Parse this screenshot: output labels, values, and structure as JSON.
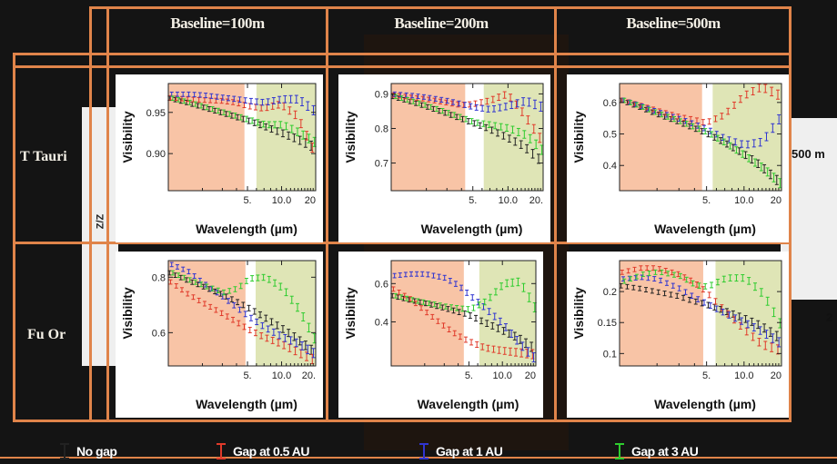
{
  "columns": [
    "Baseline=100m",
    "Baseline=200m",
    "Baseline=500m"
  ],
  "rows": [
    "T Tauri",
    "Fu Or"
  ],
  "axis": {
    "xlabel": "Wavelength (µm)",
    "ylabel": "Visibility"
  },
  "legend": [
    {
      "label": "No gap",
      "color": "#222222"
    },
    {
      "label": "Gap at 0.5 AU",
      "color": "#e03a2a"
    },
    {
      "label": "Gap at 1 AU",
      "color": "#3035d0"
    },
    {
      "label": "Gap at 3 AU",
      "color": "#2ecc2e"
    }
  ],
  "background_fragments": {
    "left_axis": "Z/Z",
    "right_label": "500 m",
    "right_tick": "2"
  },
  "colors": {
    "frame": "#e0844a",
    "shade_red": "#f8c4a6",
    "shade_green": "#dfe5b6"
  },
  "chart_data": [
    {
      "type": "line",
      "row": "T Tauri",
      "baseline": "100m",
      "xscale": "log",
      "xlim": [
        1,
        20
      ],
      "ylim": [
        0.855,
        0.985
      ],
      "xticks": [
        5,
        10,
        20
      ],
      "xtick_labels": [
        "5.",
        "10.0",
        "20"
      ],
      "yticks": [
        0.9,
        0.95
      ],
      "ytick_labels": [
        "0.90",
        "0.95"
      ],
      "shade_red": [
        1,
        4.7
      ],
      "shade_green": [
        6,
        20
      ],
      "x": [
        1,
        1.5,
        2,
        3,
        4,
        5,
        7,
        10,
        14,
        20
      ],
      "series": [
        {
          "name": "No gap",
          "values": [
            0.968,
            0.962,
            0.957,
            0.95,
            0.945,
            0.941,
            0.934,
            0.926,
            0.918,
            0.908
          ]
        },
        {
          "name": "Gap at 0.5 AU",
          "values": [
            0.968,
            0.966,
            0.965,
            0.964,
            0.962,
            0.958,
            0.955,
            0.96,
            0.945,
            0.9
          ]
        },
        {
          "name": "Gap at 1 AU",
          "values": [
            0.972,
            0.972,
            0.971,
            0.968,
            0.966,
            0.964,
            0.962,
            0.966,
            0.966,
            0.95
          ]
        },
        {
          "name": "Gap at 3 AU",
          "values": [
            0.968,
            0.962,
            0.957,
            0.95,
            0.945,
            0.941,
            0.935,
            0.935,
            0.925,
            0.912
          ]
        }
      ]
    },
    {
      "type": "line",
      "row": "T Tauri",
      "baseline": "200m",
      "xscale": "log",
      "xlim": [
        1,
        20
      ],
      "ylim": [
        0.62,
        0.93
      ],
      "xticks": [
        5,
        10,
        20
      ],
      "xtick_labels": [
        "5.",
        "10.0",
        "20."
      ],
      "yticks": [
        0.7,
        0.8,
        0.9
      ],
      "ytick_labels": [
        "0.7",
        "0.8",
        "0.9"
      ],
      "shade_red": [
        1,
        4.3
      ],
      "shade_green": [
        6.2,
        20
      ],
      "x": [
        1,
        1.5,
        2,
        3,
        4,
        5,
        7,
        10,
        14,
        20
      ],
      "series": [
        {
          "name": "No gap",
          "values": [
            0.895,
            0.878,
            0.865,
            0.845,
            0.83,
            0.818,
            0.8,
            0.775,
            0.75,
            0.705
          ]
        },
        {
          "name": "Gap at 0.5 AU",
          "values": [
            0.898,
            0.89,
            0.885,
            0.875,
            0.868,
            0.87,
            0.88,
            0.9,
            0.84,
            0.76
          ]
        },
        {
          "name": "Gap at 1 AU",
          "values": [
            0.9,
            0.895,
            0.89,
            0.88,
            0.87,
            0.862,
            0.855,
            0.865,
            0.88,
            0.86
          ]
        },
        {
          "name": "Gap at 3 AU",
          "values": [
            0.895,
            0.878,
            0.865,
            0.845,
            0.83,
            0.818,
            0.81,
            0.8,
            0.78,
            0.73
          ]
        }
      ]
    },
    {
      "type": "line",
      "row": "T Tauri",
      "baseline": "500m",
      "xscale": "log",
      "xlim": [
        1,
        20
      ],
      "ylim": [
        0.32,
        0.66
      ],
      "xticks": [
        5,
        10,
        20
      ],
      "xtick_labels": [
        "5.",
        "10.0",
        "20"
      ],
      "yticks": [
        0.4,
        0.5,
        0.6
      ],
      "ytick_labels": [
        "0.4",
        "0.5",
        "0.6"
      ],
      "shade_red": [
        1,
        4.6
      ],
      "shade_green": [
        5.6,
        20
      ],
      "x": [
        1,
        1.5,
        2,
        3,
        4,
        5,
        7,
        10,
        14,
        20
      ],
      "series": [
        {
          "name": "No gap",
          "values": [
            0.61,
            0.585,
            0.565,
            0.54,
            0.52,
            0.505,
            0.475,
            0.44,
            0.4,
            0.345
          ]
        },
        {
          "name": "Gap at 0.5 AU",
          "values": [
            0.61,
            0.59,
            0.575,
            0.555,
            0.545,
            0.535,
            0.56,
            0.62,
            0.65,
            0.62
          ]
        },
        {
          "name": "Gap at 1 AU",
          "values": [
            0.61,
            0.588,
            0.57,
            0.548,
            0.53,
            0.515,
            0.485,
            0.465,
            0.475,
            0.56
          ]
        },
        {
          "name": "Gap at 3 AU",
          "values": [
            0.61,
            0.585,
            0.565,
            0.54,
            0.52,
            0.505,
            0.47,
            0.43,
            0.39,
            0.335
          ]
        }
      ]
    },
    {
      "type": "line",
      "row": "Fu Or",
      "baseline": "100m",
      "xscale": "log",
      "xlim": [
        1,
        20
      ],
      "ylim": [
        0.48,
        0.86
      ],
      "xticks": [
        5,
        10,
        20
      ],
      "xtick_labels": [
        "5.",
        "10.0",
        "20."
      ],
      "yticks": [
        0.6,
        0.8
      ],
      "ytick_labels": [
        "0.6",
        "0.8"
      ],
      "shade_red": [
        1,
        4.8
      ],
      "shade_green": [
        5.9,
        20
      ],
      "x": [
        1,
        1.5,
        2,
        3,
        4,
        5,
        7,
        10,
        14,
        20
      ],
      "series": [
        {
          "name": "No gap",
          "values": [
            0.82,
            0.79,
            0.77,
            0.74,
            0.715,
            0.695,
            0.66,
            0.62,
            0.58,
            0.53
          ]
        },
        {
          "name": "Gap at 0.5 AU",
          "values": [
            0.79,
            0.74,
            0.71,
            0.67,
            0.64,
            0.615,
            0.585,
            0.56,
            0.53,
            0.5
          ]
        },
        {
          "name": "Gap at 1 AU",
          "values": [
            0.85,
            0.82,
            0.78,
            0.73,
            0.69,
            0.66,
            0.62,
            0.585,
            0.56,
            0.52
          ]
        },
        {
          "name": "Gap at 3 AU",
          "values": [
            0.82,
            0.79,
            0.77,
            0.745,
            0.76,
            0.795,
            0.8,
            0.76,
            0.68,
            0.56
          ]
        }
      ]
    },
    {
      "type": "line",
      "row": "Fu Or",
      "baseline": "200m",
      "xscale": "log",
      "xlim": [
        1,
        20
      ],
      "ylim": [
        0.17,
        0.72
      ],
      "xticks": [
        5,
        10,
        20
      ],
      "xtick_labels": [
        "5.",
        "10.0",
        "20"
      ],
      "yticks": [
        0.4,
        0.6
      ],
      "ytick_labels": [
        "0.4",
        "0.6"
      ],
      "shade_red": [
        1,
        4.5
      ],
      "shade_green": [
        6.2,
        20
      ],
      "x": [
        1,
        1.5,
        2,
        3,
        4,
        5,
        7,
        10,
        14,
        20
      ],
      "series": [
        {
          "name": "No gap",
          "values": [
            0.54,
            0.515,
            0.5,
            0.475,
            0.455,
            0.44,
            0.4,
            0.36,
            0.32,
            0.26
          ]
        },
        {
          "name": "Gap at 0.5 AU",
          "values": [
            0.58,
            0.52,
            0.46,
            0.38,
            0.33,
            0.3,
            0.265,
            0.25,
            0.24,
            0.23
          ]
        },
        {
          "name": "Gap at 1 AU",
          "values": [
            0.64,
            0.65,
            0.65,
            0.63,
            0.59,
            0.54,
            0.47,
            0.39,
            0.29,
            0.2
          ]
        },
        {
          "name": "Gap at 3 AU",
          "values": [
            0.54,
            0.515,
            0.5,
            0.48,
            0.47,
            0.465,
            0.51,
            0.6,
            0.61,
            0.45
          ]
        }
      ]
    },
    {
      "type": "line",
      "row": "Fu Or",
      "baseline": "500m",
      "xscale": "log",
      "xlim": [
        1,
        20
      ],
      "ylim": [
        0.08,
        0.25
      ],
      "xticks": [
        5,
        10,
        20
      ],
      "xtick_labels": [
        "5.",
        "10.0",
        "20"
      ],
      "yticks": [
        0.1,
        0.15,
        0.2
      ],
      "ytick_labels": [
        "0.1",
        "0.15",
        "0.2"
      ],
      "shade_red": [
        1,
        4.7
      ],
      "shade_green": [
        5.9,
        20
      ],
      "x": [
        1,
        1.5,
        2,
        3,
        4,
        5,
        7,
        10,
        14,
        20
      ],
      "series": [
        {
          "name": "No gap",
          "values": [
            0.21,
            0.205,
            0.2,
            0.193,
            0.185,
            0.18,
            0.17,
            0.158,
            0.145,
            0.125
          ]
        },
        {
          "name": "Gap at 0.5 AU",
          "values": [
            0.23,
            0.238,
            0.238,
            0.228,
            0.215,
            0.2,
            0.17,
            0.14,
            0.115,
            0.105
          ]
        },
        {
          "name": "Gap at 1 AU",
          "values": [
            0.22,
            0.223,
            0.22,
            0.205,
            0.19,
            0.18,
            0.165,
            0.15,
            0.135,
            0.115
          ]
        },
        {
          "name": "Gap at 3 AU",
          "values": [
            0.215,
            0.228,
            0.232,
            0.225,
            0.21,
            0.208,
            0.222,
            0.222,
            0.195,
            0.14
          ]
        }
      ]
    }
  ]
}
